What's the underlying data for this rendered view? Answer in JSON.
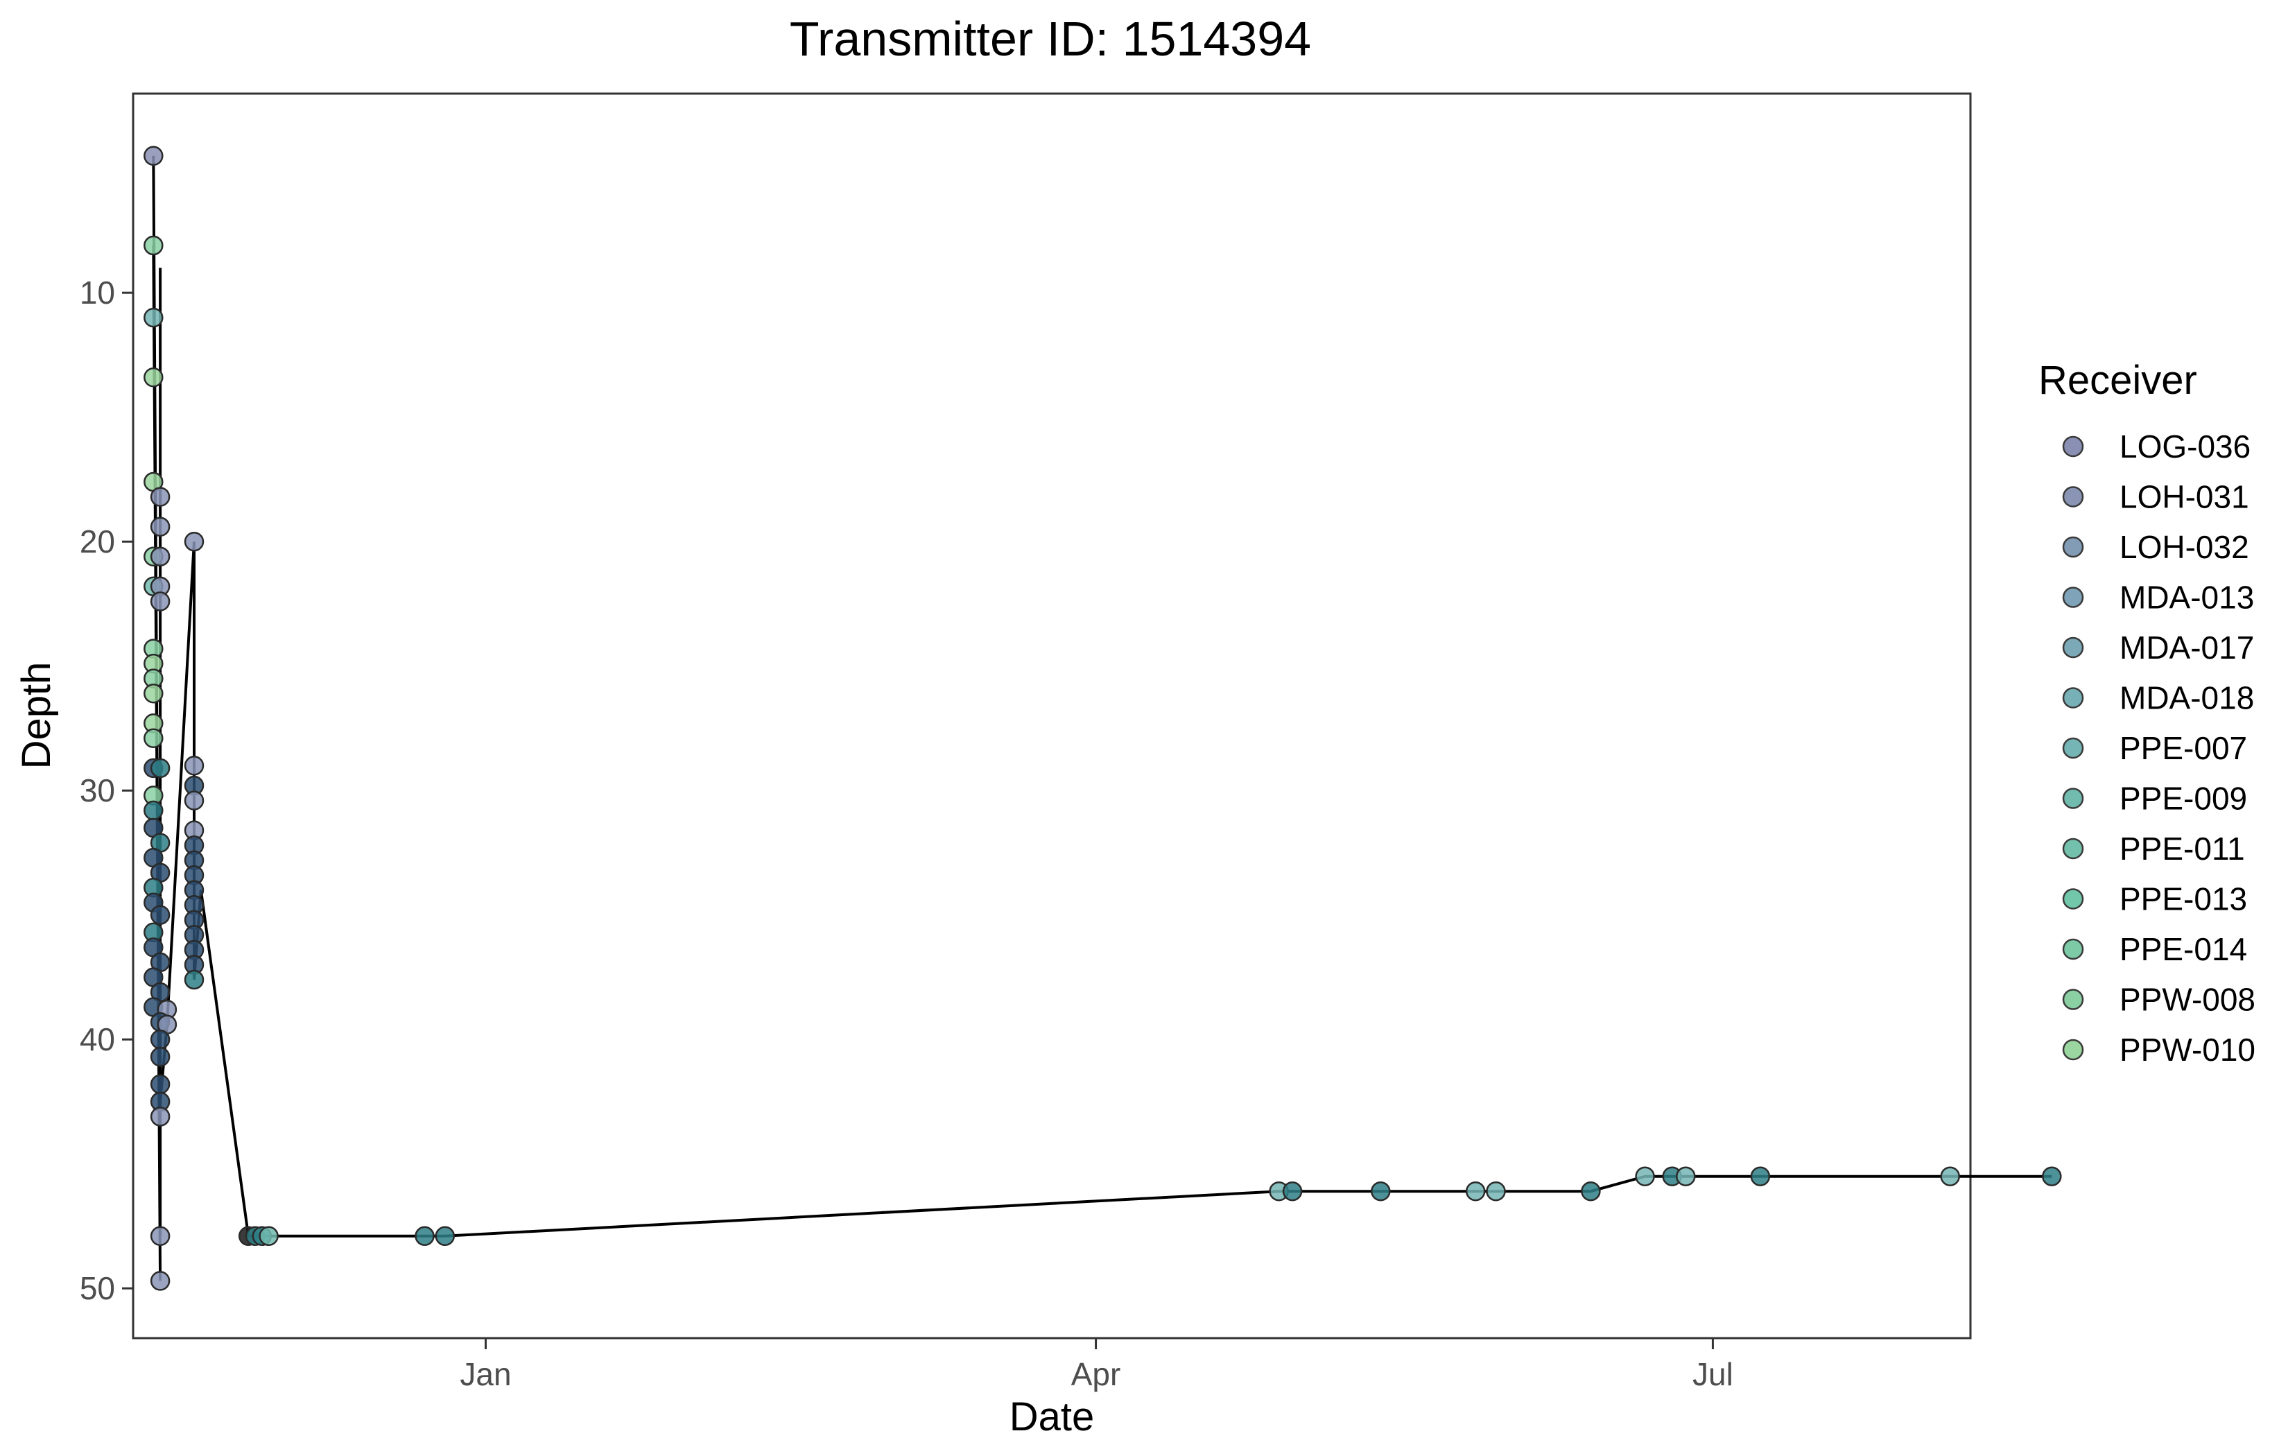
{
  "chart_data": {
    "type": "scatter",
    "title": "Transmitter ID: 1514394",
    "xlabel": "Date",
    "ylabel": "Depth",
    "x_ticks": [
      {
        "date": "2018-01-01",
        "label": "Jan"
      },
      {
        "date": "2018-04-01",
        "label": "Apr"
      },
      {
        "date": "2018-07-01",
        "label": "Jul"
      }
    ],
    "y_ticks": [
      10,
      20,
      30,
      40,
      50
    ],
    "xlim": [
      "2017-11-10",
      "2018-08-08"
    ],
    "ylim": [
      52,
      2
    ],
    "y_reversed": true,
    "grid": false,
    "legend": {
      "title": "Receiver",
      "placement": "right",
      "items": [
        {
          "name": "LOG-036",
          "color": "#8a8fb4"
        },
        {
          "name": "LOH-031",
          "color": "#8a95b6"
        },
        {
          "name": "LOH-032",
          "color": "#839cb6"
        },
        {
          "name": "MDA-013",
          "color": "#7fa3b8"
        },
        {
          "name": "MDA-017",
          "color": "#7ca9b8"
        },
        {
          "name": "MDA-018",
          "color": "#78b0b8"
        },
        {
          "name": "PPE-007",
          "color": "#75b5b5"
        },
        {
          "name": "PPE-009",
          "color": "#72bbaf"
        },
        {
          "name": "PPE-011",
          "color": "#73c1ac"
        },
        {
          "name": "PPE-013",
          "color": "#72c6a9"
        },
        {
          "name": "PPE-014",
          "color": "#7dcba6"
        },
        {
          "name": "PPW-008",
          "color": "#8ad0a3"
        },
        {
          "name": "PPW-010",
          "color": "#9bd59f"
        }
      ]
    },
    "point_colors": {
      "dark": "#2c4f72",
      "teal": "#2e7f86",
      "black": "#1a1a1a"
    },
    "line_color": "#000000",
    "cluster_points": [
      {
        "x": "2017-11-13",
        "y": 4.5,
        "c": "#8a8fb4"
      },
      {
        "x": "2017-11-13",
        "y": 8.1,
        "c": "#8ad0a3"
      },
      {
        "x": "2017-11-13",
        "y": 11.0,
        "c": "#75b5b5"
      },
      {
        "x": "2017-11-13",
        "y": 13.4,
        "c": "#9bd59f"
      },
      {
        "x": "2017-11-13",
        "y": 17.6,
        "c": "#9bd59f"
      },
      {
        "x": "2017-11-14",
        "y": 18.2,
        "c": "#8a95b6"
      },
      {
        "x": "2017-11-14",
        "y": 19.4,
        "c": "#8a95b6"
      },
      {
        "x": "2017-11-13",
        "y": 20.6,
        "c": "#8ad0a3"
      },
      {
        "x": "2017-11-14",
        "y": 20.6,
        "c": "#8a95b6"
      },
      {
        "x": "2017-11-13",
        "y": 21.8,
        "c": "#72bbaf"
      },
      {
        "x": "2017-11-14",
        "y": 21.8,
        "c": "#8a95b6"
      },
      {
        "x": "2017-11-14",
        "y": 22.4,
        "c": "#8a95b6"
      },
      {
        "x": "2017-11-13",
        "y": 24.3,
        "c": "#8ad0a3"
      },
      {
        "x": "2017-11-13",
        "y": 24.9,
        "c": "#9bd59f"
      },
      {
        "x": "2017-11-13",
        "y": 25.5,
        "c": "#8ad0a3"
      },
      {
        "x": "2017-11-13",
        "y": 26.1,
        "c": "#9bd59f"
      },
      {
        "x": "2017-11-13",
        "y": 27.3,
        "c": "#9bd59f"
      },
      {
        "x": "2017-11-13",
        "y": 27.9,
        "c": "#8ad0a3"
      },
      {
        "x": "2017-11-13",
        "y": 29.1,
        "c": "#2c4f72"
      },
      {
        "x": "2017-11-14",
        "y": 29.1,
        "c": "#2e7f86"
      },
      {
        "x": "2017-11-13",
        "y": 30.2,
        "c": "#8ad0a3"
      },
      {
        "x": "2017-11-13",
        "y": 30.8,
        "c": "#2e7f86"
      },
      {
        "x": "2017-11-13",
        "y": 31.5,
        "c": "#2c4f72"
      },
      {
        "x": "2017-11-14",
        "y": 32.1,
        "c": "#2e7f86"
      },
      {
        "x": "2017-11-13",
        "y": 32.7,
        "c": "#2c4f72"
      },
      {
        "x": "2017-11-14",
        "y": 33.3,
        "c": "#2c4f72"
      },
      {
        "x": "2017-11-13",
        "y": 33.9,
        "c": "#2e7f86"
      },
      {
        "x": "2017-11-13",
        "y": 34.5,
        "c": "#2c4f72"
      },
      {
        "x": "2017-11-14",
        "y": 35.0,
        "c": "#2c4f72"
      },
      {
        "x": "2017-11-13",
        "y": 35.7,
        "c": "#2e7f86"
      },
      {
        "x": "2017-11-13",
        "y": 36.3,
        "c": "#2c4f72"
      },
      {
        "x": "2017-11-14",
        "y": 36.9,
        "c": "#2c4f72"
      },
      {
        "x": "2017-11-13",
        "y": 37.5,
        "c": "#2c4f72"
      },
      {
        "x": "2017-11-14",
        "y": 38.1,
        "c": "#2c4f72"
      },
      {
        "x": "2017-11-13",
        "y": 38.7,
        "c": "#2c4f72"
      },
      {
        "x": "2017-11-15",
        "y": 38.8,
        "c": "#8a95b6"
      },
      {
        "x": "2017-11-14",
        "y": 39.3,
        "c": "#2c4f72"
      },
      {
        "x": "2017-11-15",
        "y": 39.4,
        "c": "#8a95b6"
      },
      {
        "x": "2017-11-14",
        "y": 40.0,
        "c": "#2c4f72"
      },
      {
        "x": "2017-11-14",
        "y": 40.7,
        "c": "#2c4f72"
      },
      {
        "x": "2017-11-14",
        "y": 41.8,
        "c": "#2c4f72"
      },
      {
        "x": "2017-11-14",
        "y": 42.5,
        "c": "#2c4f72"
      },
      {
        "x": "2017-11-14",
        "y": 43.1,
        "c": "#8a95b6"
      },
      {
        "x": "2017-11-14",
        "y": 47.9,
        "c": "#8a95b6"
      },
      {
        "x": "2017-11-14",
        "y": 49.7,
        "c": "#8a95b6"
      },
      {
        "x": "2017-11-19",
        "y": 20.0,
        "c": "#8a95b6"
      },
      {
        "x": "2017-11-19",
        "y": 29.0,
        "c": "#8a95b6"
      },
      {
        "x": "2017-11-19",
        "y": 29.8,
        "c": "#2c4f72"
      },
      {
        "x": "2017-11-19",
        "y": 30.4,
        "c": "#8a95b6"
      },
      {
        "x": "2017-11-19",
        "y": 31.6,
        "c": "#8a95b6"
      },
      {
        "x": "2017-11-19",
        "y": 32.2,
        "c": "#2c4f72"
      },
      {
        "x": "2017-11-19",
        "y": 32.8,
        "c": "#2c4f72"
      },
      {
        "x": "2017-11-19",
        "y": 33.4,
        "c": "#2c4f72"
      },
      {
        "x": "2017-11-19",
        "y": 34.0,
        "c": "#2c4f72"
      },
      {
        "x": "2017-11-19",
        "y": 34.6,
        "c": "#2c4f72"
      },
      {
        "x": "2017-11-19",
        "y": 35.2,
        "c": "#2c4f72"
      },
      {
        "x": "2017-11-19",
        "y": 35.8,
        "c": "#2c4f72"
      },
      {
        "x": "2017-11-19",
        "y": 36.4,
        "c": "#2c4f72"
      },
      {
        "x": "2017-11-19",
        "y": 37.0,
        "c": "#2c4f72"
      },
      {
        "x": "2017-11-19",
        "y": 37.6,
        "c": "#2e7f86"
      }
    ],
    "track_points": [
      {
        "x": "2017-11-27",
        "y": 47.9,
        "c": "#1a1a1a"
      },
      {
        "x": "2017-11-28",
        "y": 47.9,
        "c": "#2e7f86"
      },
      {
        "x": "2017-11-29",
        "y": 47.9,
        "c": "#2e7f86"
      },
      {
        "x": "2017-11-30",
        "y": 47.9,
        "c": "#72bbaf"
      },
      {
        "x": "2017-12-23",
        "y": 47.9,
        "c": "#2e7f86"
      },
      {
        "x": "2017-12-26",
        "y": 47.9,
        "c": "#2e7f86"
      },
      {
        "x": "2018-04-28",
        "y": 46.1,
        "c": "#75b5b5"
      },
      {
        "x": "2018-04-30",
        "y": 46.1,
        "c": "#2e7f86"
      },
      {
        "x": "2018-05-13",
        "y": 46.1,
        "c": "#2e7f86"
      },
      {
        "x": "2018-05-27",
        "y": 46.1,
        "c": "#75b5b5"
      },
      {
        "x": "2018-05-30",
        "y": 46.1,
        "c": "#75b5b5"
      },
      {
        "x": "2018-06-13",
        "y": 46.1,
        "c": "#2e7f86"
      },
      {
        "x": "2018-06-21",
        "y": 45.5,
        "c": "#75b5b5"
      },
      {
        "x": "2018-06-25",
        "y": 45.5,
        "c": "#2e7f86"
      },
      {
        "x": "2018-06-27",
        "y": 45.5,
        "c": "#75b5b5"
      },
      {
        "x": "2018-07-08",
        "y": 45.5,
        "c": "#2e7f86"
      },
      {
        "x": "2018-08-05",
        "y": 45.5,
        "c": "#75b5b5"
      },
      {
        "x": "2018-08-20",
        "y": 45.5,
        "c": "#2e7f86"
      }
    ],
    "path": [
      {
        "x": "2017-11-13",
        "y": 4.5
      },
      {
        "x": "2017-11-14",
        "y": 49.7
      },
      {
        "x": "2017-11-13",
        "y": 8.1
      },
      {
        "x": "2017-11-14",
        "y": 47.9
      },
      {
        "x": "2017-11-14",
        "y": 9.0
      },
      {
        "x": "2017-11-14",
        "y": 42.5
      },
      {
        "x": "2017-11-15",
        "y": 39.4
      },
      {
        "x": "2017-11-19",
        "y": 20.0
      },
      {
        "x": "2017-11-19",
        "y": 37.6
      },
      {
        "x": "2017-11-20",
        "y": 34.0
      },
      {
        "x": "2017-11-27",
        "y": 47.9
      },
      {
        "x": "2017-12-26",
        "y": 47.9
      },
      {
        "x": "2018-04-28",
        "y": 46.1
      },
      {
        "x": "2018-06-13",
        "y": 46.1
      },
      {
        "x": "2018-06-21",
        "y": 45.5
      },
      {
        "x": "2018-08-20",
        "y": 45.5
      }
    ]
  }
}
